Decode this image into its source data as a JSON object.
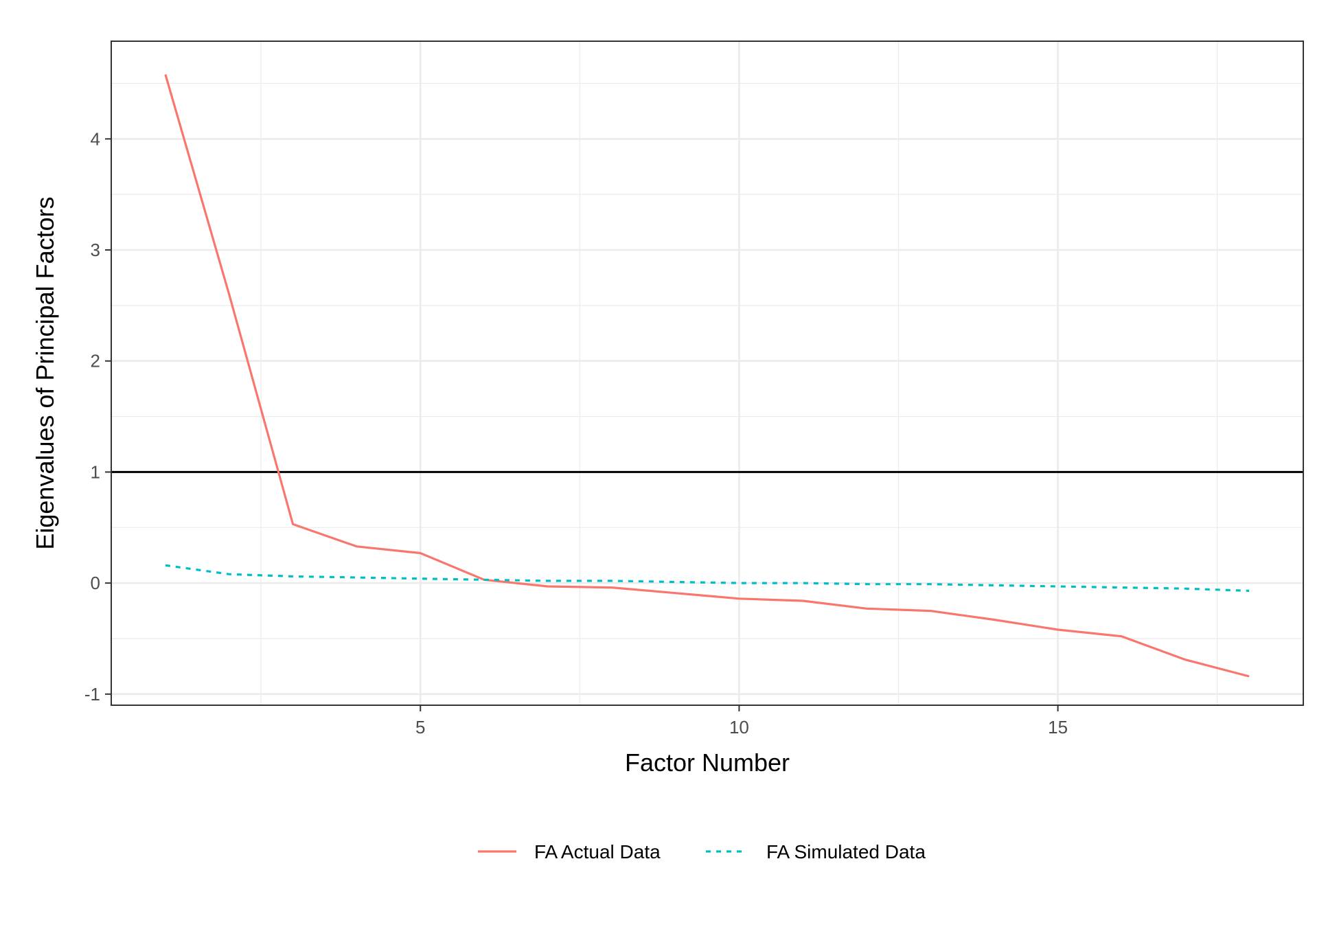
{
  "chart_data": {
    "type": "line",
    "title": "",
    "xlabel": "Factor Number",
    "ylabel": "Eigenvalues of Principal Factors",
    "xlim": [
      0.15,
      18.85
    ],
    "ylim": [
      -1.1,
      4.88
    ],
    "x_major_ticks": [
      5,
      10,
      15
    ],
    "x_minor_ticks": [
      2.5,
      7.5,
      12.5,
      17.5
    ],
    "y_major_ticks": [
      -1,
      0,
      1,
      2,
      3,
      4
    ],
    "y_minor_ticks": [
      -0.5,
      0.5,
      1.5,
      2.5,
      3.5,
      4.5
    ],
    "x_tick_labels": [
      "5",
      "10",
      "15"
    ],
    "y_tick_labels": [
      "-1",
      "0",
      "1",
      "2",
      "3",
      "4"
    ],
    "grid": true,
    "reference_line": {
      "y": 1,
      "color": "#000000"
    },
    "legend_position": "bottom",
    "x": [
      1,
      2,
      3,
      4,
      5,
      6,
      7,
      8,
      9,
      10,
      11,
      12,
      13,
      14,
      15,
      16,
      17,
      18
    ],
    "series": [
      {
        "name": "FA Actual Data",
        "color": "#F8766D",
        "style": "solid",
        "values": [
          4.58,
          2.6,
          0.53,
          0.33,
          0.27,
          0.03,
          -0.03,
          -0.04,
          -0.09,
          -0.14,
          -0.16,
          -0.23,
          -0.25,
          -0.33,
          -0.42,
          -0.48,
          -0.69,
          -0.84
        ]
      },
      {
        "name": "FA Simulated Data",
        "color": "#00BFC4",
        "style": "dashed",
        "values": [
          0.16,
          0.08,
          0.06,
          0.05,
          0.04,
          0.03,
          0.02,
          0.02,
          0.01,
          0.0,
          0.0,
          -0.01,
          -0.01,
          -0.02,
          -0.03,
          -0.04,
          -0.05,
          -0.07
        ]
      }
    ]
  }
}
